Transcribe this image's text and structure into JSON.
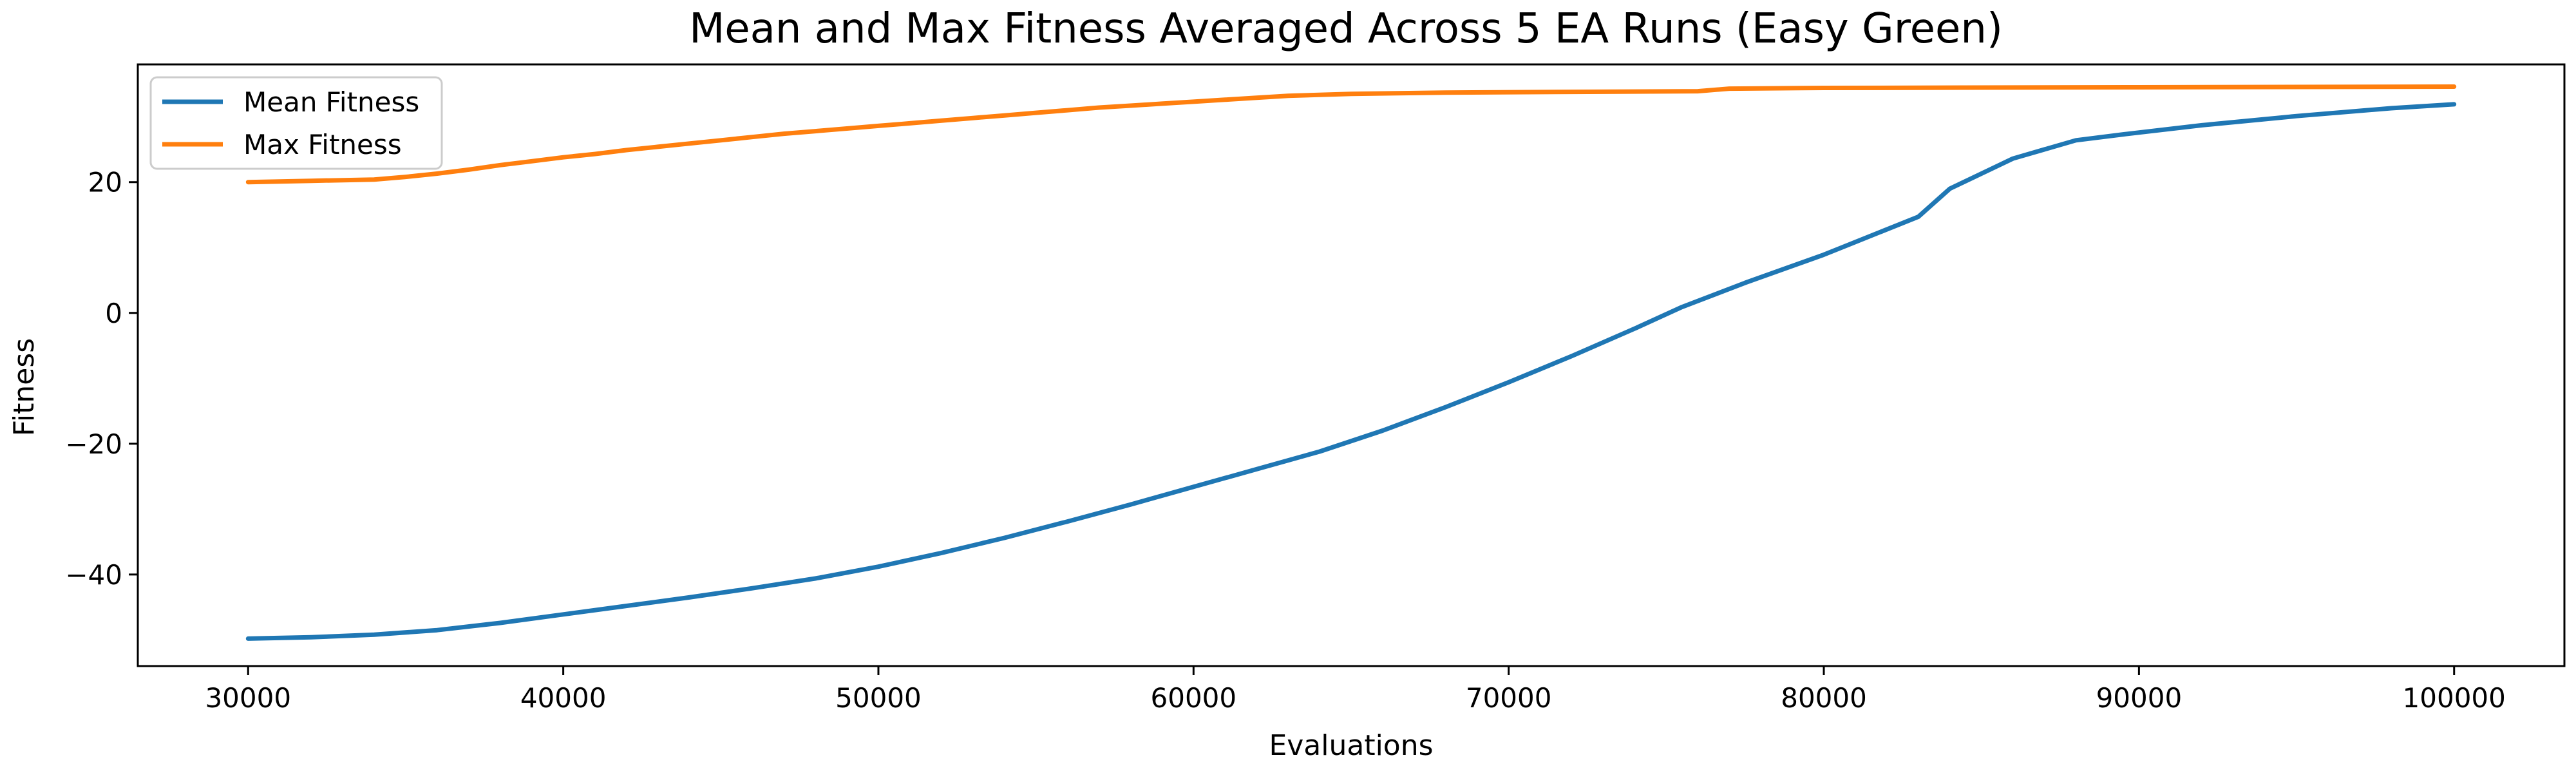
{
  "chart_data": {
    "type": "line",
    "title": "Mean and Max Fitness Averaged Across 5 EA Runs (Easy Green)",
    "xlabel": "Evaluations",
    "ylabel": "Fitness",
    "xlim": [
      26500,
      103500
    ],
    "ylim": [
      -54,
      38
    ],
    "x_ticks": [
      30000,
      40000,
      50000,
      60000,
      70000,
      80000,
      90000,
      100000
    ],
    "x_tick_labels": [
      "30000",
      "40000",
      "50000",
      "60000",
      "70000",
      "80000",
      "90000",
      "100000"
    ],
    "y_ticks": [
      -40,
      -20,
      0,
      20
    ],
    "y_tick_labels": [
      "−40",
      "−20",
      "0",
      "20"
    ],
    "grid": false,
    "legend_position": "top-left",
    "series": [
      {
        "name": "Mean Fitness",
        "color": "#1f77b4",
        "x": [
          30000,
          32000,
          34000,
          36000,
          38000,
          40000,
          42000,
          44000,
          46000,
          48000,
          50000,
          52000,
          54000,
          56000,
          58000,
          60000,
          62000,
          64000,
          66000,
          68000,
          70000,
          72000,
          74000,
          75500,
          77500,
          80000,
          83000,
          84000,
          86000,
          88000,
          89500,
          92000,
          95000,
          98000,
          100000
        ],
        "y": [
          -49.8,
          -49.6,
          -49.2,
          -48.5,
          -47.4,
          -46.1,
          -44.8,
          -43.5,
          -42.1,
          -40.6,
          -38.8,
          -36.7,
          -34.4,
          -31.9,
          -29.3,
          -26.6,
          -23.9,
          -21.2,
          -18.0,
          -14.4,
          -10.6,
          -6.6,
          -2.4,
          0.9,
          4.6,
          8.9,
          14.7,
          19.0,
          23.6,
          26.4,
          27.3,
          28.7,
          30.1,
          31.3,
          31.9
        ]
      },
      {
        "name": "Max Fitness",
        "color": "#ff7f0e",
        "x": [
          30000,
          32000,
          34000,
          35000,
          36000,
          37000,
          38000,
          39000,
          40000,
          41000,
          42000,
          43000,
          44000,
          45000,
          46000,
          47000,
          48000,
          49000,
          50000,
          51000,
          52000,
          53000,
          54000,
          55000,
          56000,
          57000,
          58000,
          59000,
          60000,
          61000,
          62000,
          63000,
          65000,
          68000,
          72000,
          76000,
          77000,
          80000,
          90000,
          100000
        ],
        "y": [
          20.0,
          20.2,
          20.4,
          20.8,
          21.3,
          21.9,
          22.6,
          23.2,
          23.8,
          24.3,
          24.9,
          25.4,
          25.9,
          26.4,
          26.9,
          27.4,
          27.8,
          28.2,
          28.6,
          29.0,
          29.4,
          29.8,
          30.2,
          30.6,
          31.0,
          31.4,
          31.7,
          32.0,
          32.3,
          32.6,
          32.9,
          33.2,
          33.5,
          33.7,
          33.8,
          33.9,
          34.3,
          34.4,
          34.5,
          34.6
        ]
      }
    ]
  }
}
